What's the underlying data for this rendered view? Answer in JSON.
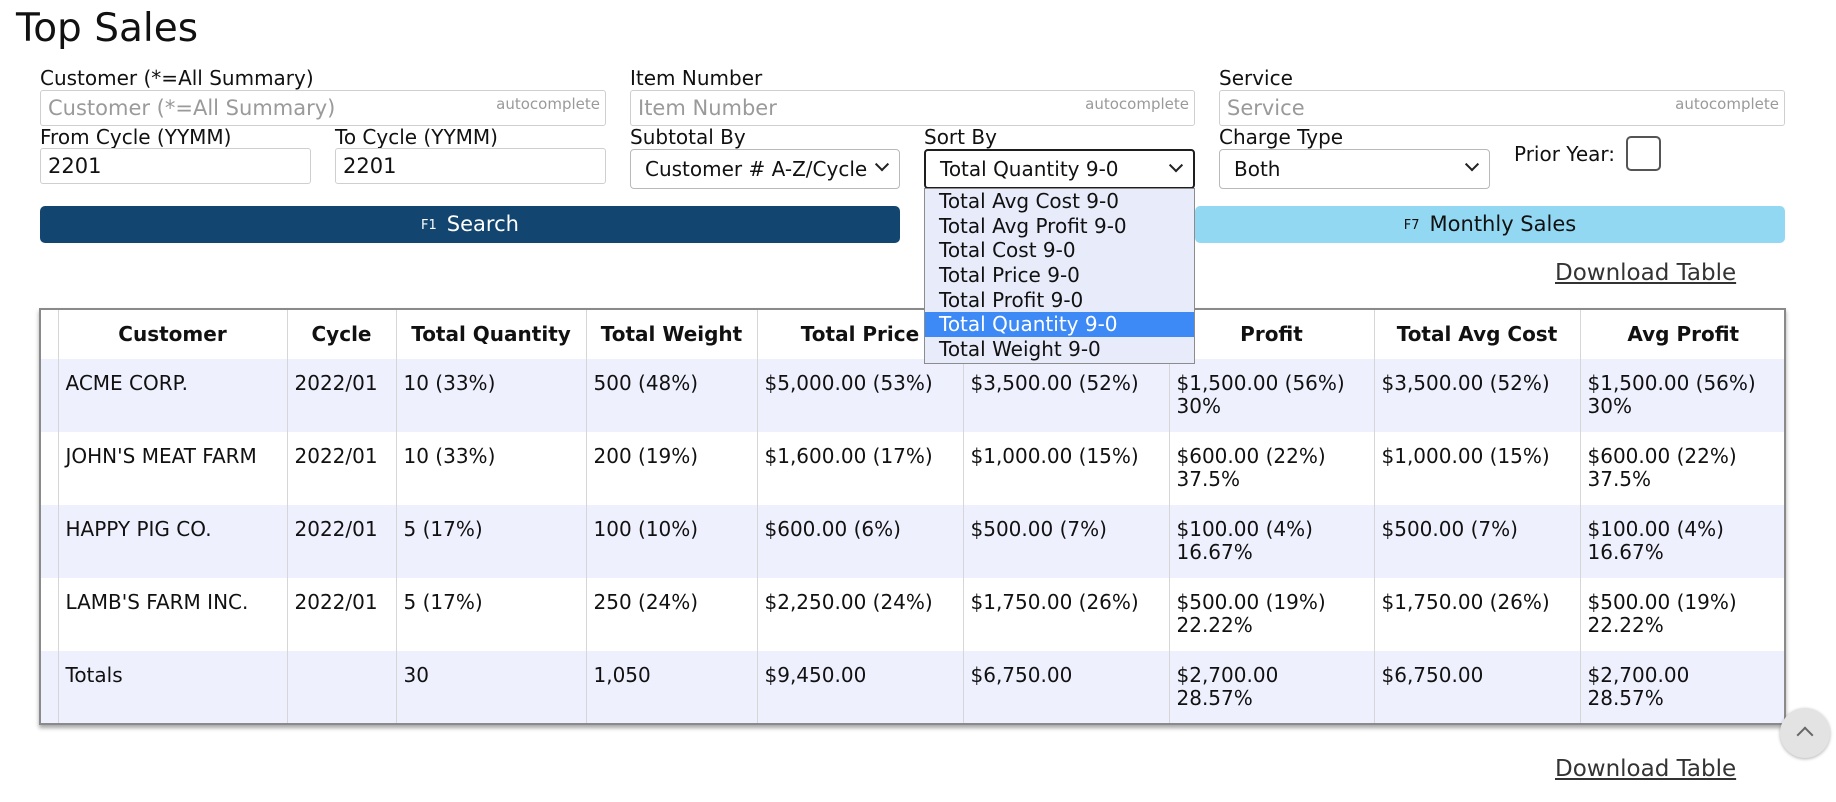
{
  "page": {
    "title": "Top Sales"
  },
  "filters": {
    "customer": {
      "label": "Customer (*=All Summary)",
      "placeholder": "Customer (*=All Summary)",
      "hint": "autocomplete"
    },
    "item_number": {
      "label": "Item Number",
      "placeholder": "Item Number",
      "hint": "autocomplete"
    },
    "service": {
      "label": "Service",
      "placeholder": "Service",
      "hint": "autocomplete"
    },
    "from_cycle": {
      "label": "From Cycle (YYMM)",
      "value": "2201"
    },
    "to_cycle": {
      "label": "To Cycle (YYMM)",
      "value": "2201"
    },
    "subtotal_by": {
      "label": "Subtotal By",
      "value": "Customer # A-Z/Cycle"
    },
    "sort_by": {
      "label": "Sort By",
      "value": "Total Quantity 9-0",
      "options": [
        "Total Avg Cost 9-0",
        "Total Avg Profit 9-0",
        "Total Cost 9-0",
        "Total Price 9-0",
        "Total Profit 9-0",
        "Total Quantity 9-0",
        "Total Weight 9-0"
      ]
    },
    "charge_type": {
      "label": "Charge Type",
      "value": "Both"
    },
    "prior_year": {
      "label": "Prior Year:",
      "checked": false
    }
  },
  "actions": {
    "search": {
      "key": "F1",
      "label": "Search",
      "color": "#124570"
    },
    "monthly_sales": {
      "key": "F7",
      "label": "Monthly Sales",
      "color": "#93d8f2"
    },
    "download_top": "Download Table",
    "download_bottom": "Download Table"
  },
  "table": {
    "columns": [
      "Customer",
      "Cycle",
      "Total Quantity",
      "Total Weight",
      "Total Price",
      "",
      "Profit",
      "Total Avg Cost",
      "Avg Profit"
    ],
    "rows": [
      {
        "customer": "ACME CORP.",
        "cycle": "2022/01",
        "qty": "10 (33%)",
        "weight": "500 (48%)",
        "price": "$5,000.00 (53%)",
        "cost": "$3,500.00 (52%)",
        "profit": "$1,500.00 (56%)",
        "profit_pct": "30%",
        "avg_cost": "$3,500.00 (52%)",
        "avg_profit": "$1,500.00 (56%)",
        "avg_profit_pct": "30%"
      },
      {
        "customer": "JOHN'S MEAT FARM",
        "cycle": "2022/01",
        "qty": "10 (33%)",
        "weight": "200 (19%)",
        "price": "$1,600.00 (17%)",
        "cost": "$1,000.00 (15%)",
        "profit": "$600.00 (22%)",
        "profit_pct": "37.5%",
        "avg_cost": "$1,000.00 (15%)",
        "avg_profit": "$600.00 (22%)",
        "avg_profit_pct": "37.5%"
      },
      {
        "customer": "HAPPY PIG CO.",
        "cycle": "2022/01",
        "qty": "5 (17%)",
        "weight": "100 (10%)",
        "price": "$600.00 (6%)",
        "cost": "$500.00 (7%)",
        "profit": "$100.00 (4%)",
        "profit_pct": "16.67%",
        "avg_cost": "$500.00 (7%)",
        "avg_profit": "$100.00 (4%)",
        "avg_profit_pct": "16.67%"
      },
      {
        "customer": "LAMB'S FARM INC.",
        "cycle": "2022/01",
        "qty": "5 (17%)",
        "weight": "250 (24%)",
        "price": "$2,250.00 (24%)",
        "cost": "$1,750.00 (26%)",
        "profit": "$500.00 (19%)",
        "profit_pct": "22.22%",
        "avg_cost": "$1,750.00 (26%)",
        "avg_profit": "$500.00 (19%)",
        "avg_profit_pct": "22.22%"
      }
    ],
    "totals": {
      "label": "Totals",
      "cycle": "",
      "qty": "30",
      "weight": "1,050",
      "price": "$9,450.00",
      "cost": "$6,750.00",
      "profit": "$2,700.00",
      "profit_pct": "28.57%",
      "avg_cost": "$6,750.00",
      "avg_profit": "$2,700.00",
      "avg_profit_pct": "28.57%"
    }
  },
  "scroll_top": {
    "icon": "chevron-up-icon"
  }
}
